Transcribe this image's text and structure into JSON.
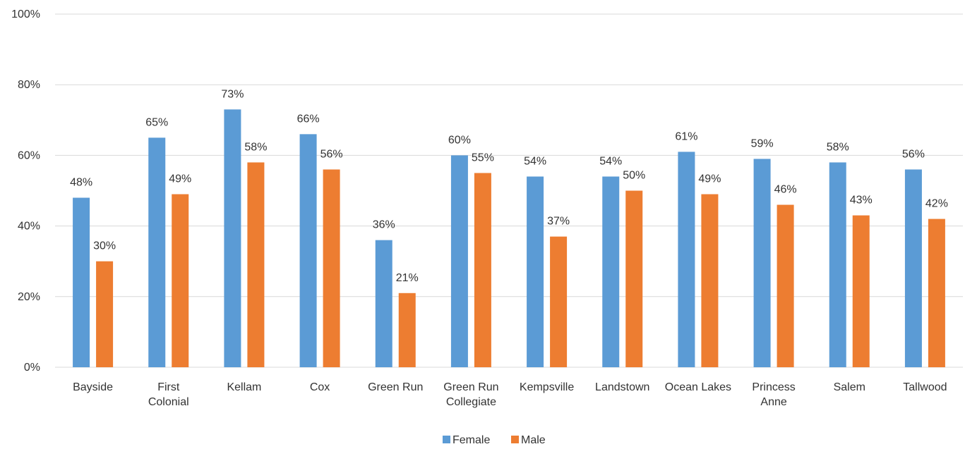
{
  "chart_data": {
    "type": "bar",
    "categories": [
      [
        "Bayside"
      ],
      [
        "First",
        "Colonial"
      ],
      [
        "Kellam"
      ],
      [
        "Cox"
      ],
      [
        "Green Run"
      ],
      [
        "Green Run",
        "Collegiate"
      ],
      [
        "Kempsville"
      ],
      [
        "Landstown"
      ],
      [
        "Ocean Lakes"
      ],
      [
        "Princess",
        "Anne"
      ],
      [
        "Salem"
      ],
      [
        "Tallwood"
      ]
    ],
    "series": [
      {
        "name": "Female",
        "color": "#5b9bd5",
        "values": [
          48,
          65,
          73,
          66,
          36,
          60,
          54,
          54,
          61,
          59,
          58,
          56
        ],
        "labels": [
          "48%",
          "65%",
          "73%",
          "66%",
          "36%",
          "60%",
          "54%",
          "54%",
          "61%",
          "59%",
          "58%",
          "56%"
        ]
      },
      {
        "name": "Male",
        "color": "#ed7d31",
        "values": [
          30,
          49,
          58,
          56,
          21,
          55,
          37,
          50,
          49,
          46,
          43,
          42
        ],
        "labels": [
          "30%",
          "49%",
          "58%",
          "56%",
          "21%",
          "55%",
          "37%",
          "50%",
          "49%",
          "46%",
          "43%",
          "42%"
        ]
      }
    ],
    "title": "",
    "xlabel": "",
    "ylabel": "",
    "ylim": [
      0,
      100
    ],
    "yticks": [
      0,
      20,
      40,
      60,
      80,
      100
    ],
    "ytick_labels": [
      "0%",
      "20%",
      "40%",
      "60%",
      "80%",
      "100%"
    ],
    "grid": true,
    "legend_position": "bottom-center"
  }
}
